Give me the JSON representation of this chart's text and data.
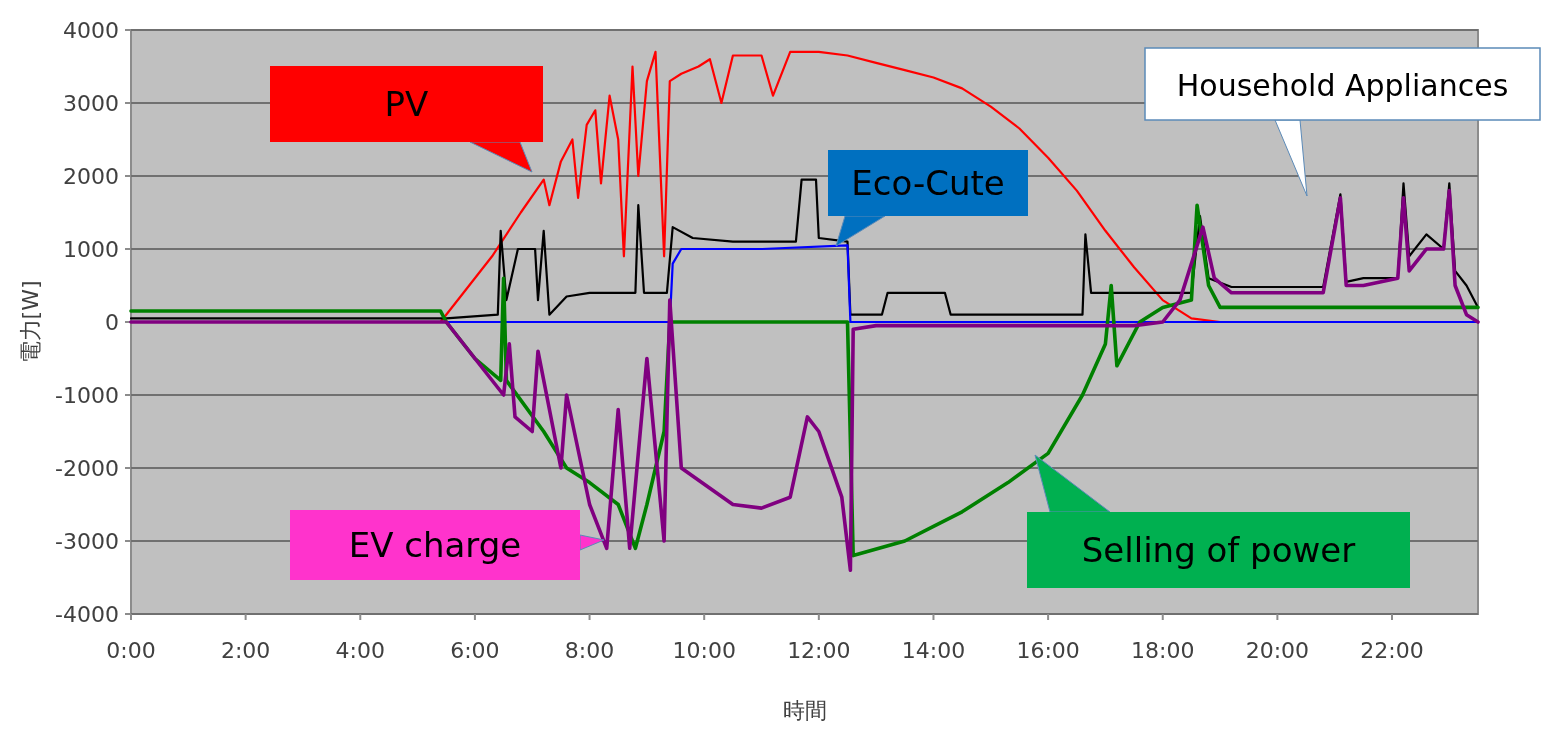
{
  "chart_data": {
    "type": "line",
    "xlabel": "時間",
    "ylabel": "電力[W]",
    "xlim": [
      0,
      23.5
    ],
    "ylim": [
      -4000,
      4000
    ],
    "xticks": [
      {
        "value": 0,
        "label": "0:00"
      },
      {
        "value": 2,
        "label": "2:00"
      },
      {
        "value": 4,
        "label": "4:00"
      },
      {
        "value": 6,
        "label": "6:00"
      },
      {
        "value": 8,
        "label": "8:00"
      },
      {
        "value": 10,
        "label": "10:00"
      },
      {
        "value": 12,
        "label": "12:00"
      },
      {
        "value": 14,
        "label": "14:00"
      },
      {
        "value": 16,
        "label": "16:00"
      },
      {
        "value": 18,
        "label": "18:00"
      },
      {
        "value": 20,
        "label": "20:00"
      },
      {
        "value": 22,
        "label": "22:00"
      }
    ],
    "yticks": [
      -4000,
      -3000,
      -2000,
      -1000,
      0,
      1000,
      2000,
      3000,
      4000
    ],
    "grid": "y",
    "line_style": "solid",
    "marker": "none",
    "series": [
      {
        "name": "PV",
        "color": "#ff0000",
        "x": [
          0,
          5.4,
          5.8,
          6.3,
          6.8,
          7.2,
          7.3,
          7.5,
          7.7,
          7.8,
          7.95,
          8.1,
          8.2,
          8.35,
          8.5,
          8.6,
          8.75,
          8.85,
          9.0,
          9.15,
          9.3,
          9.4,
          9.6,
          9.9,
          10.1,
          10.3,
          10.5,
          11,
          11.2,
          11.5,
          12,
          12.5,
          13,
          13.5,
          14,
          14.5,
          15,
          15.5,
          16,
          16.5,
          17,
          17.5,
          18,
          18.5,
          19,
          23.5
        ],
        "values": [
          0,
          0,
          400,
          900,
          1500,
          1950,
          1600,
          2200,
          2500,
          1700,
          2700,
          2900,
          1900,
          3100,
          2500,
          900,
          3500,
          2000,
          3300,
          3700,
          900,
          3300,
          3400,
          3500,
          3600,
          3000,
          3650,
          3650,
          3100,
          3700,
          3700,
          3650,
          3550,
          3450,
          3350,
          3200,
          2950,
          2650,
          2250,
          1800,
          1250,
          750,
          300,
          50,
          0,
          0
        ]
      },
      {
        "name": "Household Appliances",
        "color": "#000000",
        "x": [
          0,
          5.5,
          6.4,
          6.45,
          6.55,
          6.75,
          7.05,
          7.1,
          7.2,
          7.3,
          7.6,
          8.0,
          8.5,
          8.8,
          8.85,
          8.95,
          9.35,
          9.45,
          9.8,
          10.5,
          11.6,
          11.7,
          11.95,
          12.0,
          12.5,
          12.55,
          13.1,
          13.2,
          14.2,
          14.3,
          16.6,
          16.65,
          16.75,
          17.3,
          17.5,
          18.5,
          18.65,
          18.8,
          19.2,
          20.8,
          21.1,
          21.2,
          21.5,
          22.1,
          22.2,
          22.3,
          22.6,
          22.9,
          23.0,
          23.1,
          23.3,
          23.5
        ],
        "values": [
          50,
          50,
          100,
          1250,
          300,
          1000,
          1000,
          300,
          1250,
          100,
          350,
          400,
          400,
          400,
          1600,
          400,
          400,
          1300,
          1150,
          1100,
          1100,
          1950,
          1950,
          1150,
          1100,
          100,
          100,
          400,
          400,
          100,
          100,
          1200,
          400,
          400,
          400,
          400,
          1450,
          600,
          480,
          480,
          1750,
          550,
          600,
          600,
          1900,
          900,
          1200,
          1000,
          1900,
          700,
          500,
          200
        ]
      },
      {
        "name": "Eco-Cute",
        "color": "#0000ff",
        "x": [
          0,
          9.4,
          9.45,
          9.6,
          11,
          12.5,
          12.55,
          23.5
        ],
        "values": [
          0,
          0,
          800,
          1000,
          1000,
          1050,
          0,
          0
        ]
      },
      {
        "name": "Selling of power",
        "color": "#008000",
        "x": [
          0,
          5.4,
          5.5,
          6.0,
          6.45,
          6.5,
          6.55,
          7.2,
          7.6,
          8.0,
          8.5,
          8.8,
          9.0,
          9.3,
          9.4,
          12.5,
          12.6,
          13.5,
          14.0,
          14.5,
          15.3,
          16.0,
          16.6,
          17.0,
          17.1,
          17.2,
          17.6,
          18.0,
          18.5,
          18.6,
          18.8,
          19.0,
          23.5
        ],
        "values": [
          150,
          150,
          0,
          -500,
          -800,
          600,
          -800,
          -1500,
          -2000,
          -2200,
          -2500,
          -3100,
          -2500,
          -1500,
          0,
          0,
          -3200,
          -3000,
          -2800,
          -2600,
          -2200,
          -1800,
          -1000,
          -300,
          500,
          -600,
          0,
          200,
          300,
          1600,
          500,
          200,
          200
        ]
      },
      {
        "name": "EV charge",
        "color": "#800080",
        "x": [
          0,
          5.5,
          6.0,
          6.5,
          6.6,
          6.7,
          7.0,
          7.1,
          7.5,
          7.6,
          8.0,
          8.3,
          8.5,
          8.7,
          9.0,
          9.3,
          9.4,
          9.6,
          10.5,
          11.0,
          11.5,
          11.8,
          12.0,
          12.4,
          12.55,
          12.6,
          13.0,
          17.5,
          18.0,
          18.3,
          18.7,
          18.9,
          19.2,
          20.8,
          21.1,
          21.2,
          21.5,
          22.1,
          22.2,
          22.3,
          22.6,
          22.9,
          23.0,
          23.1,
          23.3,
          23.5
        ],
        "values": [
          0,
          0,
          -500,
          -1000,
          -300,
          -1300,
          -1500,
          -400,
          -2000,
          -1000,
          -2500,
          -3100,
          -1200,
          -3100,
          -500,
          -3000,
          300,
          -2000,
          -2500,
          -2550,
          -2400,
          -1300,
          -1500,
          -2400,
          -3400,
          -100,
          -50,
          -50,
          0,
          300,
          1300,
          600,
          400,
          400,
          1700,
          500,
          500,
          600,
          1700,
          700,
          1000,
          1000,
          1800,
          500,
          100,
          0
        ]
      }
    ]
  }
}
